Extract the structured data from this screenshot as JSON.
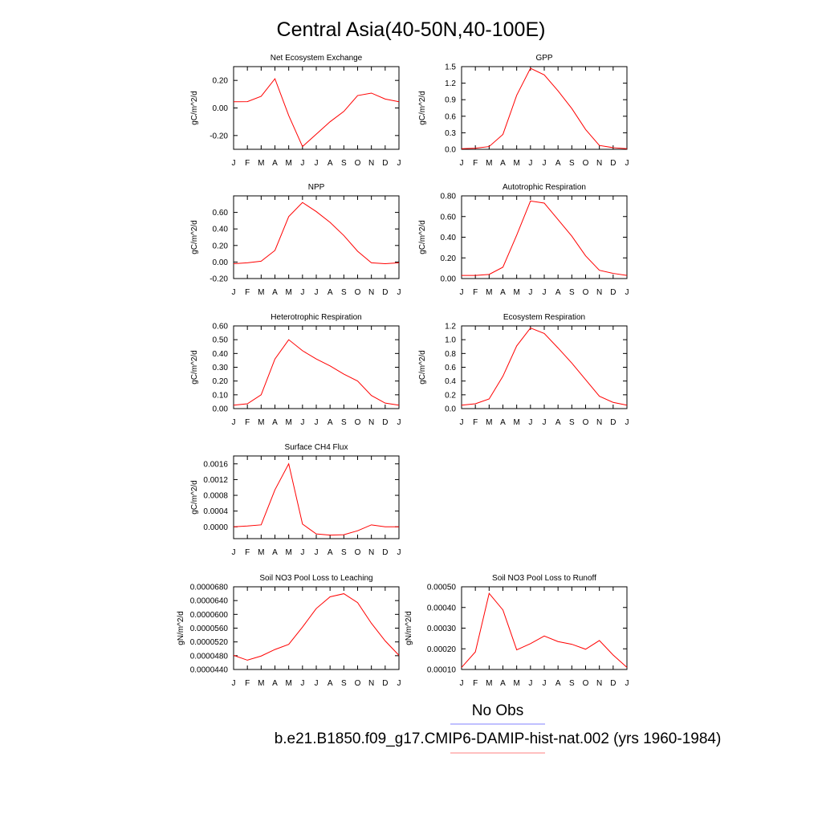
{
  "figure": {
    "title": "Central Asia(40-50N,40-100E)",
    "legend": [
      {
        "name": "No Obs",
        "color": "#8080ff"
      },
      {
        "name": "b.e21.B1850.f09_g17.CMIP6-DAMIP-hist-nat.002 (yrs 1960-1984)",
        "color": "#ff8080"
      }
    ]
  },
  "chart_data": [
    {
      "type": "line",
      "title": "Net Ecosystem Exchange",
      "ylabel": "gC/m^2/d",
      "categories": [
        "J",
        "F",
        "M",
        "A",
        "M",
        "J",
        "J",
        "A",
        "S",
        "O",
        "N",
        "D",
        "J"
      ],
      "ylim": [
        -0.3,
        0.3
      ],
      "yticks": [
        -0.2,
        0.0,
        0.2
      ],
      "ytick_labels": [
        "-0.20",
        "0.00",
        "0.20"
      ],
      "series": [
        {
          "color": "#ff0000",
          "values": [
            0.045,
            0.046,
            0.085,
            0.212,
            -0.055,
            -0.28,
            -0.19,
            -0.1,
            -0.025,
            0.09,
            0.108,
            0.065,
            0.045
          ]
        }
      ]
    },
    {
      "type": "line",
      "title": "GPP",
      "ylabel": "gC/m^2/d",
      "categories": [
        "J",
        "F",
        "M",
        "A",
        "M",
        "J",
        "J",
        "A",
        "S",
        "O",
        "N",
        "D",
        "J"
      ],
      "ylim": [
        0,
        1.5
      ],
      "yticks": [
        0,
        0.3,
        0.6,
        0.9,
        1.2,
        1.5
      ],
      "ytick_labels": [
        "0.0",
        "0.3",
        "0.6",
        "0.9",
        "1.2",
        "1.5"
      ],
      "series": [
        {
          "color": "#ff0000",
          "values": [
            0.01,
            0.02,
            0.05,
            0.27,
            0.98,
            1.47,
            1.35,
            1.06,
            0.74,
            0.36,
            0.07,
            0.03,
            0.01
          ]
        }
      ]
    },
    {
      "type": "line",
      "title": "NPP",
      "ylabel": "gC/m^2/d",
      "categories": [
        "J",
        "F",
        "M",
        "A",
        "M",
        "J",
        "J",
        "A",
        "S",
        "O",
        "N",
        "D",
        "J"
      ],
      "ylim": [
        -0.2,
        0.8
      ],
      "yticks": [
        -0.2,
        0.0,
        0.2,
        0.4,
        0.6
      ],
      "ytick_labels": [
        "-0.20",
        "0.00",
        "0.20",
        "0.40",
        "0.60"
      ],
      "series": [
        {
          "color": "#ff0000",
          "values": [
            -0.02,
            -0.01,
            0.01,
            0.14,
            0.55,
            0.72,
            0.61,
            0.48,
            0.32,
            0.13,
            -0.01,
            -0.02,
            -0.01
          ]
        }
      ]
    },
    {
      "type": "line",
      "title": "Autotrophic Respiration",
      "ylabel": "gC/m^2/d",
      "categories": [
        "J",
        "F",
        "M",
        "A",
        "M",
        "J",
        "J",
        "A",
        "S",
        "O",
        "N",
        "D",
        "J"
      ],
      "ylim": [
        0,
        0.8
      ],
      "yticks": [
        0,
        0.2,
        0.4,
        0.6,
        0.8
      ],
      "ytick_labels": [
        "0.00",
        "0.20",
        "0.40",
        "0.60",
        "0.80"
      ],
      "series": [
        {
          "color": "#ff0000",
          "values": [
            0.03,
            0.03,
            0.04,
            0.11,
            0.42,
            0.75,
            0.73,
            0.57,
            0.41,
            0.22,
            0.08,
            0.05,
            0.03
          ]
        }
      ]
    },
    {
      "type": "line",
      "title": "Heterotrophic Respiration",
      "ylabel": "gC/m^2/d",
      "categories": [
        "J",
        "F",
        "M",
        "A",
        "M",
        "J",
        "J",
        "A",
        "S",
        "O",
        "N",
        "D",
        "J"
      ],
      "ylim": [
        0,
        0.6
      ],
      "yticks": [
        0,
        0.1,
        0.2,
        0.3,
        0.4,
        0.5,
        0.6
      ],
      "ytick_labels": [
        "0.00",
        "0.10",
        "0.20",
        "0.30",
        "0.40",
        "0.50",
        "0.60"
      ],
      "series": [
        {
          "color": "#ff0000",
          "values": [
            0.025,
            0.035,
            0.1,
            0.36,
            0.5,
            0.42,
            0.36,
            0.31,
            0.25,
            0.2,
            0.095,
            0.04,
            0.025
          ]
        }
      ]
    },
    {
      "type": "line",
      "title": "Ecosystem Respiration",
      "ylabel": "gC/m^2/d",
      "categories": [
        "J",
        "F",
        "M",
        "A",
        "M",
        "J",
        "J",
        "A",
        "S",
        "O",
        "N",
        "D",
        "J"
      ],
      "ylim": [
        0,
        1.2
      ],
      "yticks": [
        0,
        0.2,
        0.4,
        0.6,
        0.8,
        1.0,
        1.2
      ],
      "ytick_labels": [
        "0.0",
        "0.2",
        "0.4",
        "0.6",
        "0.8",
        "1.0",
        "1.2"
      ],
      "series": [
        {
          "color": "#ff0000",
          "values": [
            0.05,
            0.07,
            0.14,
            0.47,
            0.91,
            1.17,
            1.09,
            0.88,
            0.66,
            0.42,
            0.18,
            0.09,
            0.05
          ]
        }
      ]
    },
    {
      "type": "line",
      "title": "Surface CH4 Flux",
      "ylabel": "gC/m^2/d",
      "categories": [
        "J",
        "F",
        "M",
        "A",
        "M",
        "J",
        "J",
        "A",
        "S",
        "O",
        "N",
        "D",
        "J"
      ],
      "ylim": [
        -0.0003,
        0.0018
      ],
      "yticks": [
        0,
        0.0004,
        0.0008,
        0.0012,
        0.0016
      ],
      "ytick_labels": [
        "0.0000",
        "0.0004",
        "0.0008",
        "0.0012",
        "0.0016"
      ],
      "series": [
        {
          "color": "#ff0000",
          "values": [
            0.0,
            2e-05,
            5e-05,
            0.00094,
            0.0016,
            7e-05,
            -0.00018,
            -0.00021,
            -0.0002,
            -0.0001,
            5e-05,
            0.0,
            0.0
          ]
        }
      ]
    },
    {
      "type": "line",
      "title": "Soil NO3 Pool Loss to Leaching",
      "ylabel": "gN/m^2/d",
      "categories": [
        "J",
        "F",
        "M",
        "A",
        "M",
        "J",
        "J",
        "A",
        "S",
        "O",
        "N",
        "D",
        "J"
      ],
      "ylim": [
        4.4e-05,
        6.8e-05
      ],
      "yticks": [
        4.4e-05,
        4.8e-05,
        5.2e-05,
        5.6e-05,
        6e-05,
        6.4e-05,
        6.8e-05
      ],
      "ytick_labels": [
        "0.0000440",
        "0.0000480",
        "0.0000520",
        "0.0000560",
        "0.0000600",
        "0.0000640",
        "0.0000680"
      ],
      "series": [
        {
          "color": "#ff0000",
          "values": [
            4.81e-05,
            4.67e-05,
            4.79e-05,
            4.98e-05,
            5.13e-05,
            5.63e-05,
            6.17e-05,
            6.51e-05,
            6.6e-05,
            6.34e-05,
            5.74e-05,
            5.23e-05,
            4.81e-05
          ]
        }
      ]
    },
    {
      "type": "line",
      "title": "Soil NO3 Pool Loss to Runoff",
      "ylabel": "gN/m^2/d",
      "categories": [
        "J",
        "F",
        "M",
        "A",
        "M",
        "J",
        "J",
        "A",
        "S",
        "O",
        "N",
        "D",
        "J"
      ],
      "ylim": [
        0.0001,
        0.0005
      ],
      "yticks": [
        0.0001,
        0.0002,
        0.0003,
        0.0004,
        0.0005
      ],
      "ytick_labels": [
        "0.00010",
        "0.00020",
        "0.00030",
        "0.00040",
        "0.00050"
      ],
      "series": [
        {
          "color": "#ff0000",
          "values": [
            0.00011,
            0.000185,
            0.000468,
            0.000388,
            0.000195,
            0.000225,
            0.000262,
            0.000235,
            0.000222,
            0.000198,
            0.00024,
            0.00017,
            0.00011
          ]
        }
      ]
    }
  ]
}
